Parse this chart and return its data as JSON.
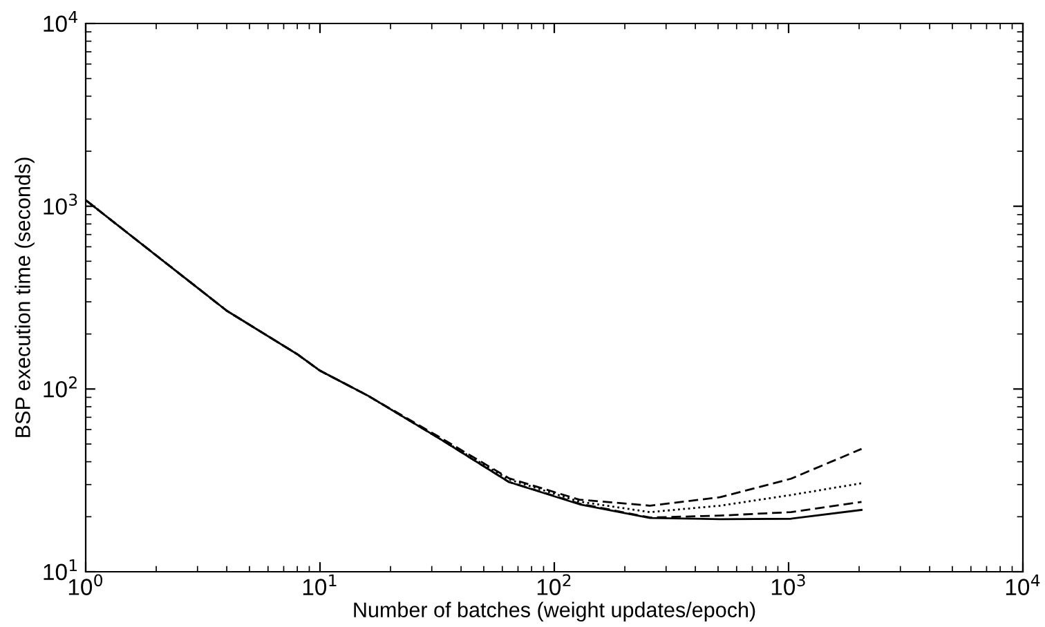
{
  "chart_data": {
    "type": "line",
    "xlabel": "Number of batches (weight updates/epoch)",
    "ylabel": "BSP execution time (seconds)",
    "log": "xy",
    "grid": false,
    "legend": false,
    "marker": "none",
    "x": [
      1,
      4,
      8,
      10,
      16,
      32,
      64,
      128,
      256,
      512,
      1024,
      2048
    ],
    "xlim": [
      1,
      10000
    ],
    "ylim": [
      10,
      10000
    ],
    "xticks": [
      {
        "value": 1,
        "label": "10$^{0}$"
      },
      {
        "value": 10,
        "label": "10$^{1}$"
      },
      {
        "value": 100,
        "label": "10$^{2}$"
      },
      {
        "value": 1000,
        "label": "10$^{3}$"
      },
      {
        "value": 10000,
        "label": "10$^{4}$"
      }
    ],
    "yticks": [
      {
        "value": 10,
        "label": "10$^{1}$"
      },
      {
        "value": 100,
        "label": "10$^{2}$"
      },
      {
        "value": 1000,
        "label": "10$^{3}$"
      },
      {
        "value": 10000,
        "label": "10$^{4}$"
      }
    ],
    "series": [
      {
        "color": "#000000",
        "line_style": "solid",
        "values": [
          1080,
          268,
          155,
          126,
          92,
          54,
          31,
          23.4,
          19.7,
          19.4,
          19.5,
          21.8
        ]
      },
      {
        "color": "#000000",
        "line_style": "dashed",
        "values": [
          1080,
          268,
          155,
          126,
          92,
          54,
          31,
          23.6,
          19.8,
          20.3,
          21.2,
          24.1
        ]
      },
      {
        "color": "#000000",
        "line_style": "dotted",
        "values": [
          1080,
          268,
          155,
          126,
          92,
          54,
          32,
          24.2,
          21.2,
          23,
          26.3,
          30.5
        ]
      },
      {
        "color": "#000000",
        "line_style": "dashed",
        "values": [
          1080,
          268,
          155,
          126,
          92,
          55,
          32.5,
          24.8,
          23,
          25.6,
          32.3,
          47
        ]
      }
    ]
  }
}
